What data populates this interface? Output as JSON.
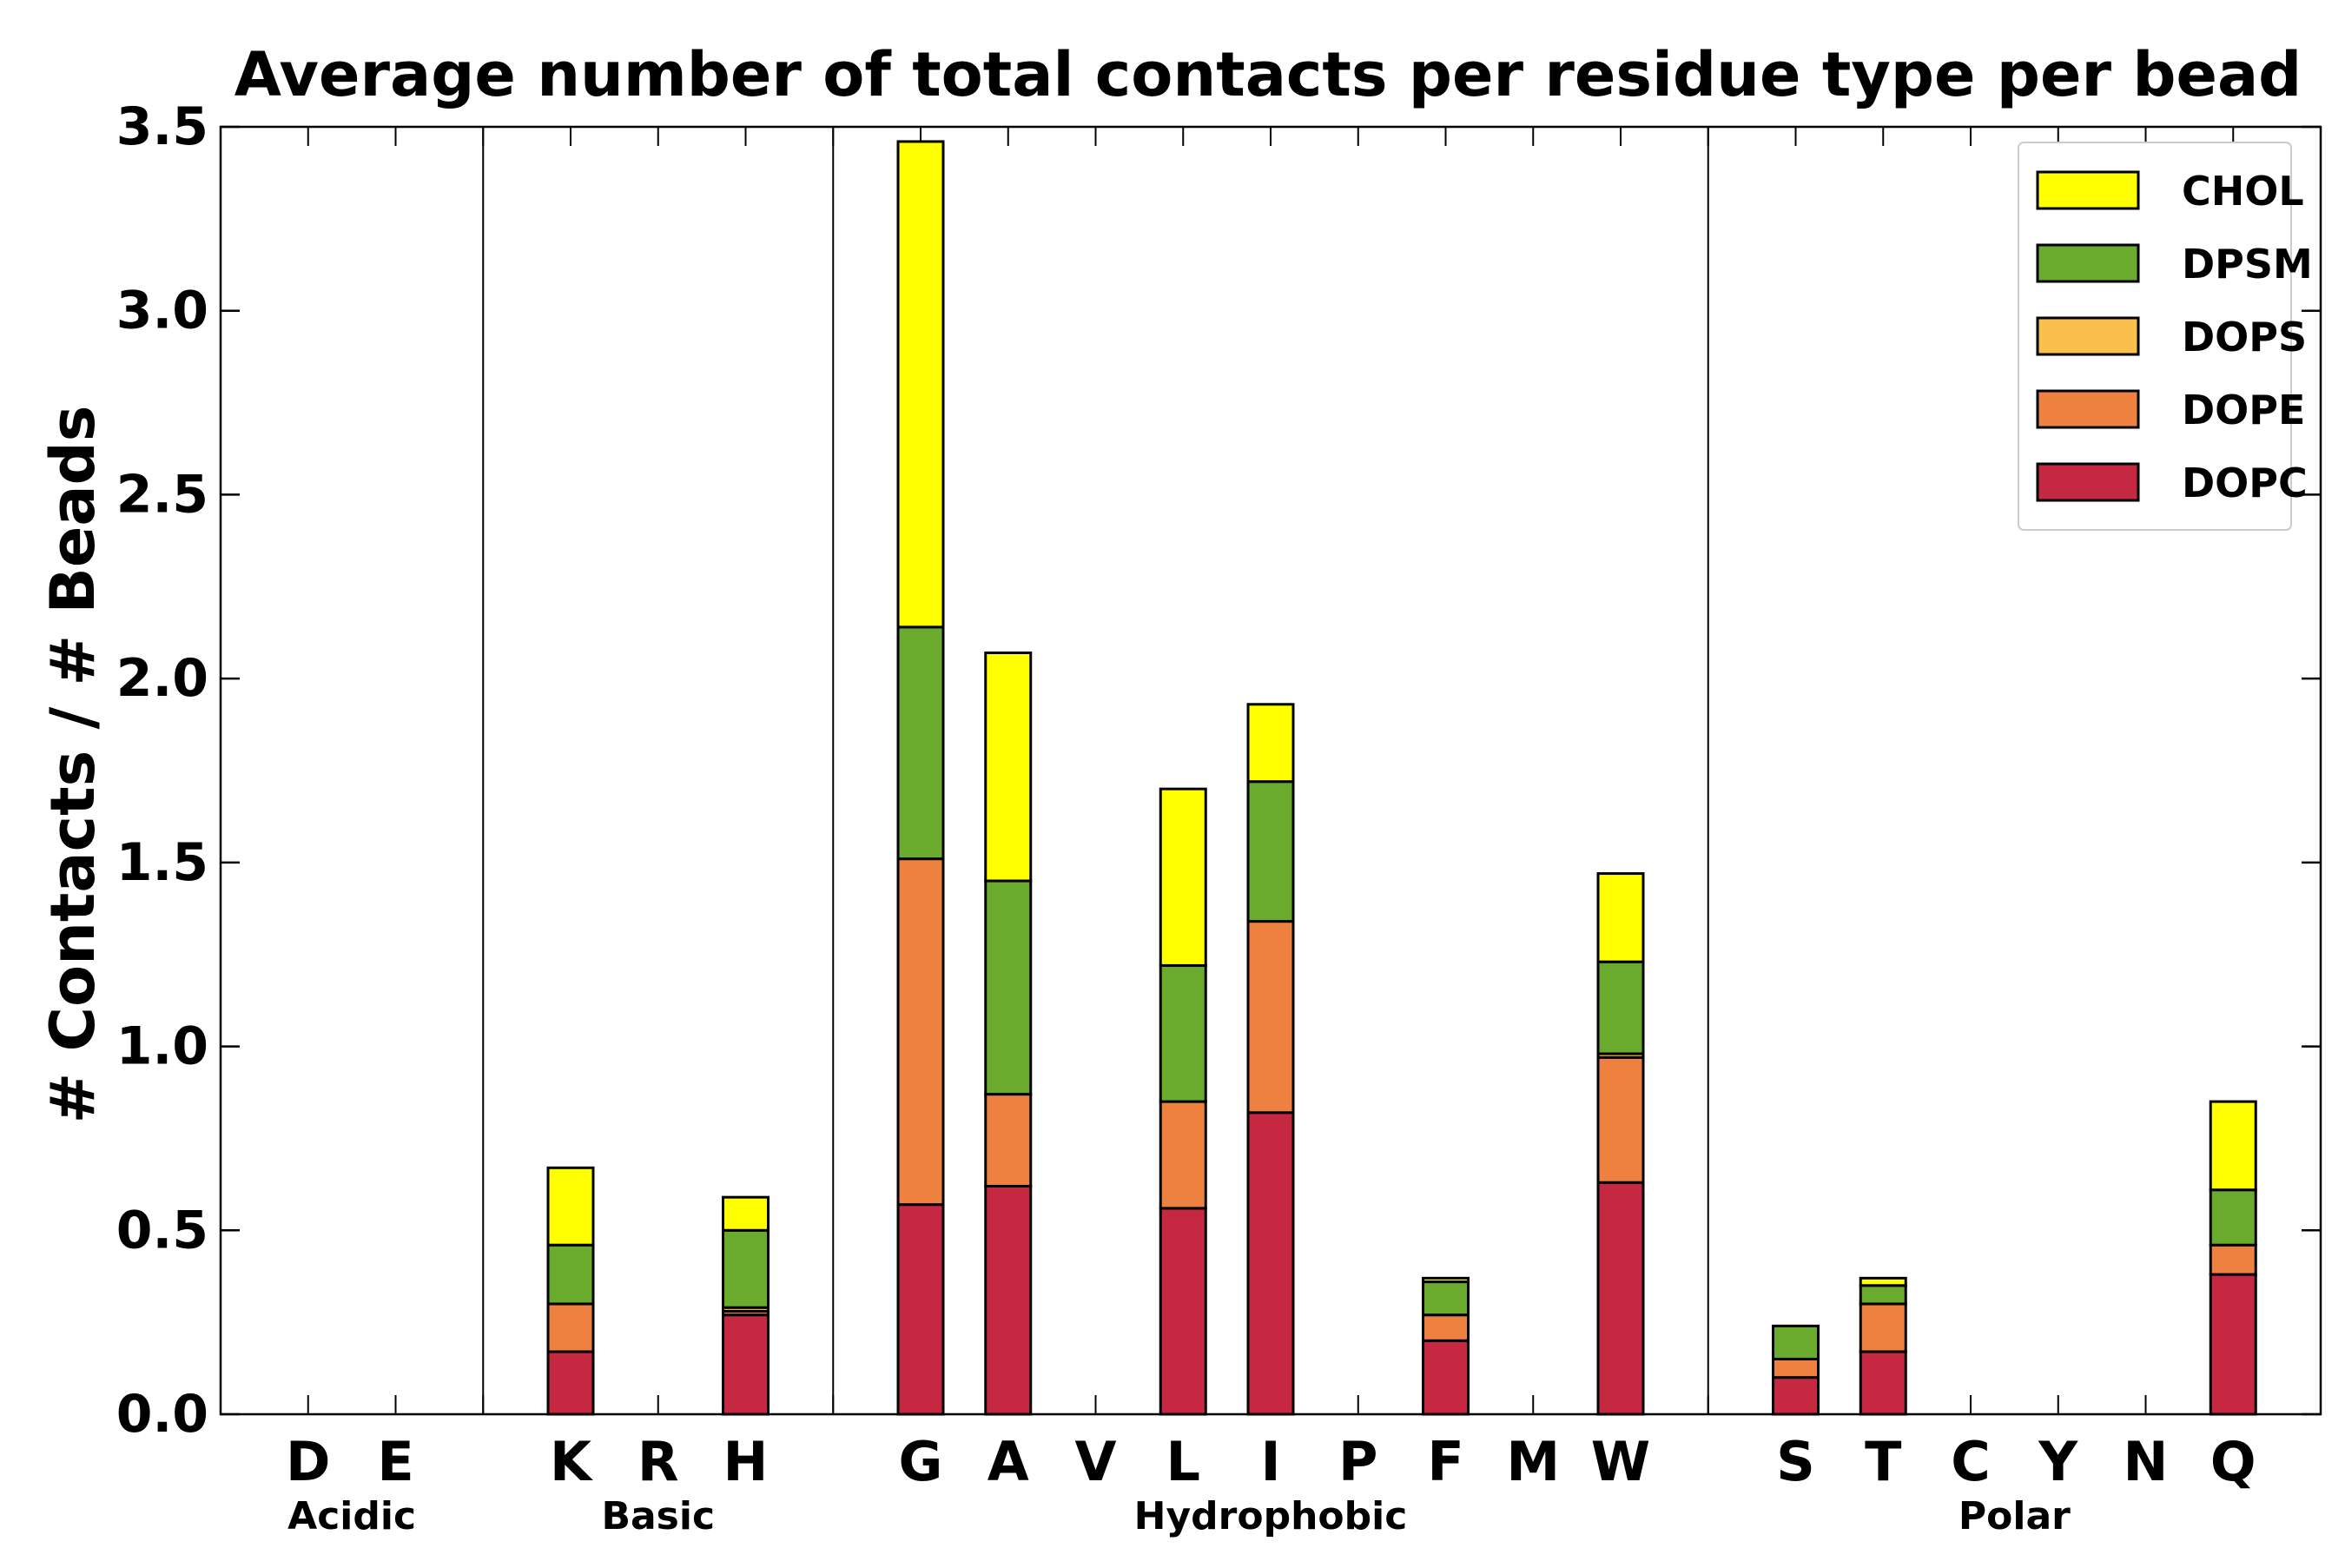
{
  "chart_data": {
    "type": "bar",
    "stacked": true,
    "title": "Average number of total contacts per residue type per bead",
    "xlabel": "",
    "ylabel": "# Contacts / # Beads",
    "ylim": [
      0,
      3.5
    ],
    "yticks": [
      "0.0",
      "0.5",
      "1.0",
      "1.5",
      "2.0",
      "2.5",
      "3.0",
      "3.5"
    ],
    "grid": false,
    "legend_position": "top-right",
    "categories": [
      "D",
      "E",
      "",
      "K",
      "R",
      "H",
      "",
      "G",
      "A",
      "V",
      "L",
      "I",
      "P",
      "F",
      "M",
      "W",
      "",
      "S",
      "T",
      "C",
      "Y",
      "N",
      "Q"
    ],
    "group_labels": [
      {
        "label": "Acidic",
        "center_index": 0.5
      },
      {
        "label": "Basic",
        "center_index": 4
      },
      {
        "label": "Hydrophobic",
        "center_index": 11
      },
      {
        "label": "Polar",
        "center_index": 19.5
      }
    ],
    "group_separators_after_index": [
      2,
      6,
      16
    ],
    "series": [
      {
        "name": "DOPC",
        "color": "#c62842",
        "values": [
          0,
          0,
          0,
          0.17,
          0,
          0.27,
          0,
          0.57,
          0.62,
          0,
          0.56,
          0.82,
          0,
          0.2,
          0,
          0.63,
          0,
          0.1,
          0.17,
          0,
          0,
          0,
          0.38
        ]
      },
      {
        "name": "DOPE",
        "color": "#ef8140",
        "values": [
          0,
          0,
          0,
          0.13,
          0,
          0.01,
          0,
          0.94,
          0.25,
          0,
          0.29,
          0.52,
          0,
          0.07,
          0,
          0.34,
          0,
          0.05,
          0.13,
          0,
          0,
          0,
          0.08
        ]
      },
      {
        "name": "DOPS",
        "color": "#fbc04b",
        "values": [
          0,
          0,
          0,
          0.0,
          0,
          0.01,
          0,
          0.0,
          0.0,
          0,
          0.0,
          0.0,
          0,
          0.0,
          0,
          0.01,
          0,
          0.0,
          0.0,
          0,
          0,
          0,
          0.0
        ]
      },
      {
        "name": "DPSM",
        "color": "#6aaa2c",
        "values": [
          0,
          0,
          0,
          0.16,
          0,
          0.21,
          0,
          0.63,
          0.58,
          0,
          0.37,
          0.38,
          0,
          0.09,
          0,
          0.25,
          0,
          0.09,
          0.05,
          0,
          0,
          0,
          0.15
        ]
      },
      {
        "name": "CHOL",
        "color": "#ffff00",
        "values": [
          0,
          0,
          0,
          0.21,
          0,
          0.09,
          0,
          1.32,
          0.62,
          0,
          0.48,
          0.21,
          0,
          0.01,
          0,
          0.24,
          0,
          0.0,
          0.02,
          0,
          0,
          0,
          0.24
        ]
      }
    ],
    "legend_order": [
      "CHOL",
      "DPSM",
      "DOPS",
      "DOPE",
      "DOPC"
    ]
  }
}
